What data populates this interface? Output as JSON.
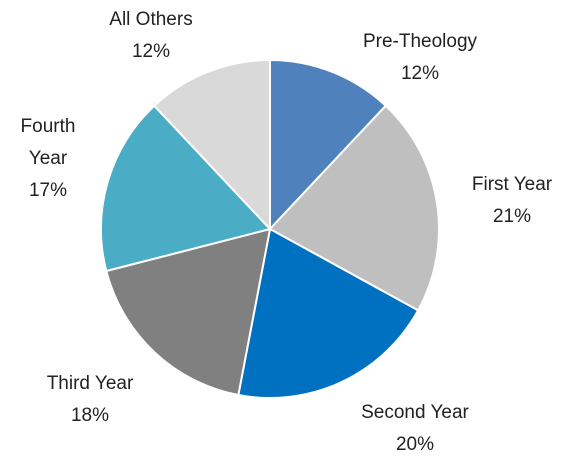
{
  "chart_data": {
    "type": "pie",
    "categories": [
      "Pre-Theology",
      "First Year",
      "Second Year",
      "Third Year",
      "Fourth Year",
      "All Others"
    ],
    "values": [
      12,
      21,
      20,
      18,
      17,
      12
    ],
    "value_labels": [
      "12%",
      "21%",
      "20%",
      "18%",
      "17%",
      "12%"
    ],
    "colors": [
      "#4f81bd",
      "#bfbfbf",
      "#0070c0",
      "#808080",
      "#4bacc6",
      "#d9d9d9"
    ]
  }
}
